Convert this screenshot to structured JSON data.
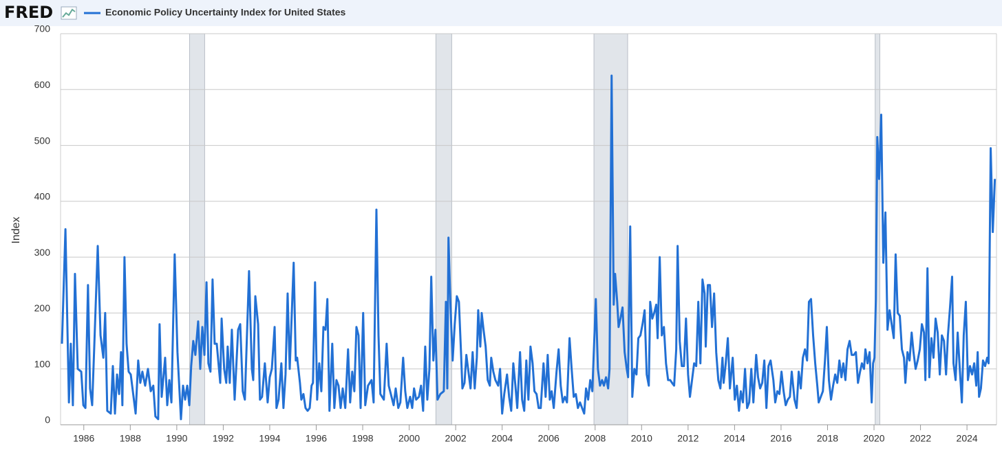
{
  "chart_data": {
    "type": "line",
    "logo": "FRED",
    "ylabel": "Index",
    "series": [
      {
        "name": "Economic Policy Uncertainty Index for United States",
        "color": "#2270d4",
        "values": [
          145,
          350,
          40,
          145,
          35,
          270,
          100,
          95,
          35,
          30,
          250,
          65,
          35,
          140,
          320,
          160,
          120,
          200,
          25,
          20,
          105,
          20,
          90,
          55,
          130,
          35,
          300,
          145,
          95,
          90,
          60,
          20,
          115,
          75,
          95,
          70,
          100,
          60,
          70,
          15,
          10,
          180,
          50,
          120,
          35,
          80,
          40,
          305,
          130,
          10,
          70,
          45,
          70,
          35,
          105,
          150,
          125,
          185,
          100,
          175,
          125,
          255,
          110,
          95,
          260,
          145,
          145,
          75,
          190,
          100,
          75,
          140,
          75,
          170,
          45,
          170,
          180,
          60,
          45,
          275,
          100,
          80,
          230,
          180,
          45,
          50,
          110,
          40,
          85,
          100,
          175,
          30,
          45,
          110,
          30,
          90,
          235,
          100,
          290,
          115,
          120,
          75,
          45,
          55,
          30,
          25,
          30,
          70,
          75,
          255,
          45,
          110,
          60,
          175,
          170,
          225,
          25,
          145,
          30,
          80,
          70,
          30,
          65,
          30,
          135,
          40,
          95,
          60,
          175,
          160,
          30,
          200,
          35,
          70,
          80,
          40,
          385,
          160,
          55,
          45,
          145,
          70,
          55,
          35,
          65,
          30,
          40,
          120,
          60,
          30,
          50,
          30,
          65,
          45,
          50,
          70,
          25,
          140,
          45,
          100,
          265,
          115,
          170,
          45,
          55,
          60,
          220,
          65,
          335,
          210,
          115,
          180,
          230,
          220,
          130,
          65,
          75,
          125,
          95,
          65,
          130,
          65,
          120,
          205,
          140,
          200,
          170,
          140,
          80,
          70,
          120,
          95,
          80,
          70,
          100,
          20,
          55,
          90,
          50,
          25,
          110,
          70,
          30,
          130,
          45,
          25,
          115,
          45,
          140,
          110,
          60,
          55,
          30,
          30,
          110,
          50,
          125,
          45,
          60,
          30,
          95,
          135,
          70,
          40,
          50,
          40,
          155,
          100,
          50,
          55,
          30,
          40,
          30,
          20,
          65,
          45,
          80,
          60,
          225,
          100,
          70,
          80,
          70,
          85,
          65,
          100,
          625,
          215,
          270,
          220,
          175,
          190,
          210,
          130,
          100,
          85,
          355,
          50,
          100,
          90,
          155,
          160,
          180,
          205,
          90,
          70,
          220,
          190,
          200,
          215,
          155,
          300,
          160,
          175,
          110,
          80,
          80,
          75,
          70,
          135,
          320,
          150,
          105,
          105,
          190,
          90,
          50,
          80,
          110,
          105,
          220,
          110,
          260,
          235,
          140,
          250,
          250,
          175,
          235,
          130,
          80,
          65,
          120,
          75,
          110,
          155,
          65,
          120,
          45,
          70,
          25,
          60,
          40,
          100,
          30,
          40,
          100,
          40,
          125,
          85,
          65,
          75,
          115,
          30,
          105,
          115,
          80,
          40,
          60,
          55,
          95,
          60,
          35,
          45,
          50,
          95,
          45,
          30,
          95,
          65,
          120,
          135,
          115,
          220,
          225,
          160,
          110,
          70,
          40,
          50,
          60,
          115,
          175,
          80,
          45,
          70,
          90,
          75,
          115,
          85,
          110,
          80,
          135,
          150,
          125,
          125,
          130,
          75,
          95,
          110,
          100,
          135,
          110,
          130,
          40,
          110,
          120,
          225,
          515,
          440,
          555,
          290,
          380,
          170,
          205,
          180,
          155,
          305,
          200,
          195,
          135,
          120,
          75,
          130,
          115,
          165,
          130,
          100,
          115,
          135,
          180,
          165,
          80,
          280,
          85,
          155,
          120,
          190,
          165,
          90,
          160,
          150,
          90,
          160,
          210,
          265,
          110,
          80,
          165,
          100,
          40,
          160,
          220,
          80,
          105,
          90,
          110,
          70,
          130,
          50,
          65,
          115,
          105,
          120,
          110,
          495,
          345,
          440
        ]
      }
    ],
    "x": [
      1985.06,
      1985.21,
      1985.36,
      1985.44,
      1985.53,
      1985.62,
      1985.74,
      1985.89,
      1985.98,
      1986.07,
      1986.18,
      1986.27,
      1986.36,
      1986.45,
      1986.6,
      1986.72,
      1986.84,
      1986.92,
      1987.01,
      1987.16,
      1987.25,
      1987.34,
      1987.43,
      1987.52,
      1987.6,
      1987.66,
      1987.75,
      1987.84,
      1987.93,
      1988.02,
      1988.11,
      1988.23,
      1988.34,
      1988.43,
      1988.52,
      1988.64,
      1988.76,
      1988.88,
      1988.99,
      1989.08,
      1989.2,
      1989.26,
      1989.35,
      1989.5,
      1989.59,
      1989.68,
      1989.77,
      1989.91,
      1990.03,
      1990.18,
      1990.27,
      1990.36,
      1990.45,
      1990.54,
      1990.62,
      1990.71,
      1990.8,
      1990.92,
      1991.01,
      1991.1,
      1991.19,
      1991.28,
      1991.36,
      1991.45,
      1991.54,
      1991.63,
      1991.72,
      1991.87,
      1991.93,
      1992.04,
      1992.13,
      1992.19,
      1992.28,
      1992.37,
      1992.49,
      1992.64,
      1992.73,
      1992.84,
      1992.93,
      1993.11,
      1993.23,
      1993.29,
      1993.38,
      1993.5,
      1993.58,
      1993.67,
      1993.79,
      1993.91,
      1994.0,
      1994.09,
      1994.21,
      1994.29,
      1994.38,
      1994.5,
      1994.59,
      1994.68,
      1994.77,
      1994.86,
      1995.03,
      1995.12,
      1995.18,
      1995.3,
      1995.36,
      1995.45,
      1995.54,
      1995.63,
      1995.72,
      1995.8,
      1995.86,
      1995.95,
      1996.04,
      1996.13,
      1996.22,
      1996.31,
      1996.4,
      1996.48,
      1996.57,
      1996.69,
      1996.78,
      1996.87,
      1996.96,
      1997.05,
      1997.14,
      1997.25,
      1997.37,
      1997.46,
      1997.55,
      1997.64,
      1997.73,
      1997.82,
      1997.91,
      1998.02,
      1998.11,
      1998.23,
      1998.38,
      1998.47,
      1998.59,
      1998.68,
      1998.76,
      1998.91,
      1999.03,
      1999.12,
      1999.21,
      1999.33,
      1999.42,
      1999.53,
      1999.62,
      1999.74,
      1999.83,
      1999.92,
      2000.04,
      2000.13,
      2000.21,
      2000.3,
      2000.42,
      2000.51,
      2000.6,
      2000.69,
      2000.78,
      2000.87,
      2000.95,
      2001.04,
      2001.13,
      2001.22,
      2001.34,
      2001.49,
      2001.58,
      2001.64,
      2001.69,
      2001.78,
      2001.87,
      2001.96,
      2002.05,
      2002.14,
      2002.23,
      2002.29,
      2002.38,
      2002.46,
      2002.55,
      2002.64,
      2002.73,
      2002.82,
      2002.91,
      2002.97,
      2003.06,
      2003.12,
      2003.2,
      2003.29,
      2003.38,
      2003.47,
      2003.53,
      2003.62,
      2003.71,
      2003.83,
      2003.91,
      2004.0,
      2004.09,
      2004.21,
      2004.3,
      2004.39,
      2004.48,
      2004.57,
      2004.65,
      2004.77,
      2004.86,
      2004.95,
      2005.04,
      2005.13,
      2005.22,
      2005.31,
      2005.39,
      2005.48,
      2005.57,
      2005.66,
      2005.78,
      2005.87,
      2005.96,
      2006.05,
      2006.13,
      2006.22,
      2006.34,
      2006.43,
      2006.52,
      2006.61,
      2006.7,
      2006.79,
      2006.9,
      2006.99,
      2007.08,
      2007.17,
      2007.26,
      2007.35,
      2007.44,
      2007.53,
      2007.61,
      2007.7,
      2007.79,
      2007.88,
      2008.03,
      2008.12,
      2008.21,
      2008.3,
      2008.38,
      2008.47,
      2008.56,
      2008.62,
      2008.71,
      2008.8,
      2008.86,
      2008.95,
      2009.01,
      2009.09,
      2009.18,
      2009.27,
      2009.36,
      2009.42,
      2009.51,
      2009.6,
      2009.69,
      2009.78,
      2009.86,
      2009.95,
      2010.04,
      2010.13,
      2010.22,
      2010.31,
      2010.37,
      2010.46,
      2010.54,
      2010.63,
      2010.69,
      2010.78,
      2010.87,
      2010.96,
      2011.05,
      2011.14,
      2011.23,
      2011.31,
      2011.4,
      2011.49,
      2011.55,
      2011.64,
      2011.73,
      2011.82,
      2011.91,
      2012.0,
      2012.08,
      2012.17,
      2012.26,
      2012.35,
      2012.44,
      2012.53,
      2012.62,
      2012.71,
      2012.76,
      2012.85,
      2012.94,
      2013.03,
      2013.12,
      2013.21,
      2013.3,
      2013.39,
      2013.48,
      2013.53,
      2013.62,
      2013.71,
      2013.8,
      2013.92,
      2014.01,
      2014.1,
      2014.19,
      2014.27,
      2014.36,
      2014.45,
      2014.54,
      2014.63,
      2014.72,
      2014.81,
      2014.93,
      2015.01,
      2015.1,
      2015.19,
      2015.28,
      2015.37,
      2015.46,
      2015.55,
      2015.67,
      2015.75,
      2015.84,
      2015.93,
      2016.02,
      2016.11,
      2016.2,
      2016.29,
      2016.38,
      2016.46,
      2016.58,
      2016.67,
      2016.76,
      2016.85,
      2016.94,
      2017.03,
      2017.12,
      2017.2,
      2017.29,
      2017.38,
      2017.47,
      2017.56,
      2017.62,
      2017.71,
      2017.8,
      2017.89,
      2017.97,
      2018.06,
      2018.15,
      2018.24,
      2018.33,
      2018.42,
      2018.51,
      2018.6,
      2018.68,
      2018.77,
      2018.86,
      2018.95,
      2019.04,
      2019.13,
      2019.22,
      2019.31,
      2019.4,
      2019.48,
      2019.57,
      2019.63,
      2019.72,
      2019.81,
      2019.9,
      2019.96,
      2020.02,
      2020.08,
      2020.14,
      2020.22,
      2020.31,
      2020.4,
      2020.49,
      2020.58,
      2020.67,
      2020.76,
      2020.85,
      2020.93,
      2021.02,
      2021.11,
      2021.2,
      2021.29,
      2021.35,
      2021.44,
      2021.53,
      2021.62,
      2021.7,
      2021.79,
      2021.88,
      2021.97,
      2022.06,
      2022.15,
      2022.21,
      2022.3,
      2022.38,
      2022.47,
      2022.56,
      2022.65,
      2022.74,
      2022.83,
      2022.92,
      2023.01,
      2023.1,
      2023.18,
      2023.27,
      2023.36,
      2023.42,
      2023.51,
      2023.6,
      2023.69,
      2023.78,
      2023.86,
      2023.95,
      2024.04,
      2024.13,
      2024.22,
      2024.31,
      2024.4,
      2024.46,
      2024.52,
      2024.6,
      2024.69,
      2024.78,
      2024.87,
      2024.93,
      2025.02,
      2025.11,
      2025.2
    ],
    "recessions": [
      [
        1990.55,
        1991.2
      ],
      [
        2001.15,
        2001.83
      ],
      [
        2007.95,
        2009.4
      ],
      [
        2020.05,
        2020.25
      ]
    ],
    "xlim": [
      1985,
      2025.27
    ],
    "xticks": [
      1986,
      1988,
      1990,
      1992,
      1994,
      1996,
      1998,
      2000,
      2002,
      2004,
      2006,
      2008,
      2010,
      2012,
      2014,
      2016,
      2018,
      2020,
      2022,
      2024
    ],
    "ylim": [
      0,
      700
    ],
    "yticks": [
      0,
      100,
      200,
      300,
      400,
      500,
      600,
      700
    ],
    "grid": true
  }
}
